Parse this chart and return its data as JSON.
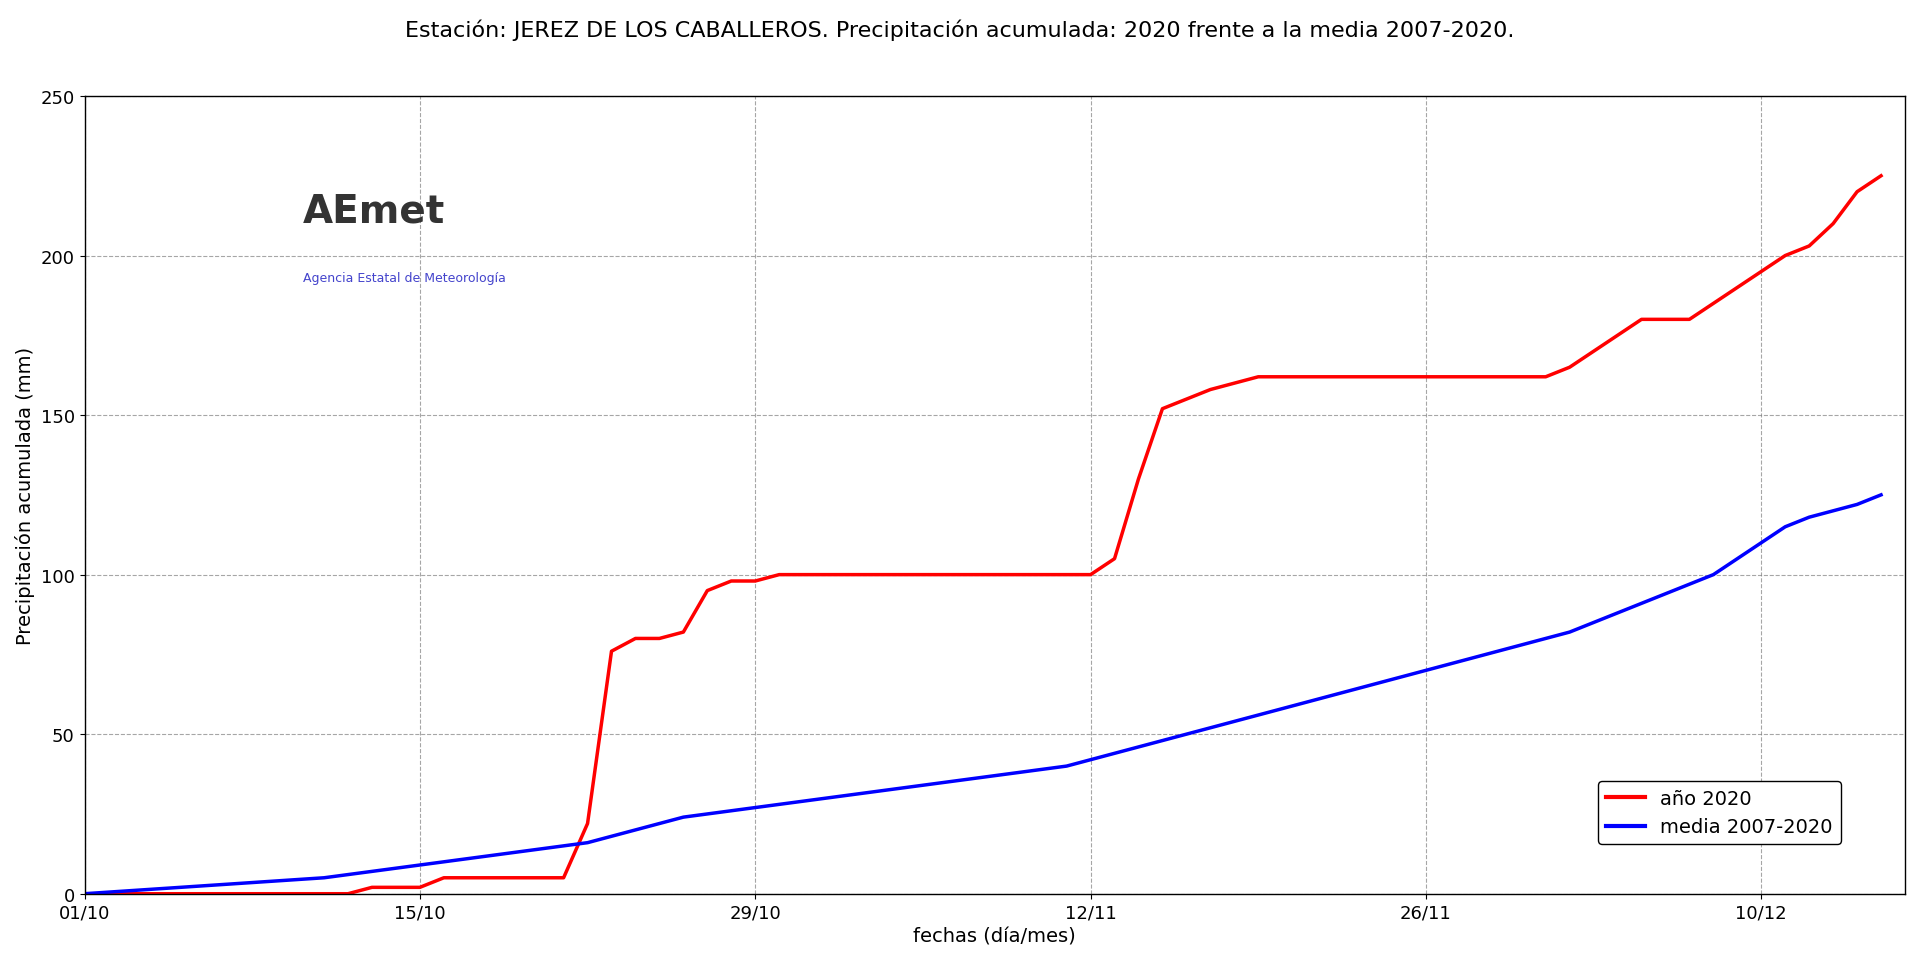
{
  "title": "Estación: JEREZ DE LOS CABALLEROS. Precipitación acumulada: 2020 frente a la media 2007-2020.",
  "xlabel": "fechas (día/mes)",
  "ylabel": "Precipitación acumulada (mm)",
  "xlim_start": "2020-10-01",
  "xlim_end": "2020-12-16",
  "ylim": [
    0,
    250
  ],
  "yticks": [
    0,
    50,
    100,
    150,
    200,
    250
  ],
  "xtick_labels": [
    "01/10",
    "15/10",
    "29/10",
    "12/11",
    "26/11",
    "10/12"
  ],
  "xtick_days": [
    0,
    14,
    28,
    42,
    56,
    70
  ],
  "line_color_2020": "#ff0000",
  "line_color_media": "#0000ff",
  "line_width": 2.5,
  "legend_label_2020": "año 2020",
  "legend_label_media": "media 2007-2020",
  "background_color": "#ffffff",
  "grid_color": "#808080",
  "grid_linestyle": "--",
  "title_fontsize": 16,
  "axis_fontsize": 14,
  "tick_fontsize": 13,
  "legend_fontsize": 14,
  "days_2020": [
    0,
    1,
    2,
    3,
    4,
    5,
    6,
    7,
    8,
    9,
    10,
    11,
    12,
    13,
    14,
    15,
    16,
    17,
    18,
    19,
    20,
    21,
    22,
    23,
    24,
    25,
    26,
    27,
    28,
    29,
    30,
    31,
    32,
    33,
    34,
    35,
    36,
    37,
    38,
    39,
    40,
    41,
    42,
    43,
    44,
    45,
    46,
    47,
    48,
    49,
    50,
    51,
    52,
    53,
    54,
    55,
    56,
    57,
    58,
    59,
    60,
    61,
    62,
    63,
    64,
    65,
    66,
    67,
    68,
    69,
    70,
    71,
    72,
    73,
    74,
    75
  ],
  "values_2020": [
    0,
    0,
    0,
    0,
    0,
    0,
    0,
    0,
    0,
    0,
    0,
    0,
    2,
    2,
    2,
    5,
    5,
    5,
    5,
    5,
    5,
    22,
    76,
    80,
    80,
    82,
    95,
    98,
    98,
    100,
    100,
    100,
    100,
    100,
    100,
    100,
    100,
    100,
    100,
    100,
    100,
    100,
    100,
    105,
    130,
    152,
    155,
    158,
    160,
    162,
    162,
    162,
    162,
    162,
    162,
    162,
    162,
    162,
    162,
    162,
    162,
    162,
    165,
    170,
    175,
    180,
    180,
    180,
    185,
    190,
    195,
    200,
    203,
    210,
    220,
    225
  ],
  "days_media": [
    0,
    1,
    2,
    3,
    4,
    5,
    6,
    7,
    8,
    9,
    10,
    11,
    12,
    13,
    14,
    15,
    16,
    17,
    18,
    19,
    20,
    21,
    22,
    23,
    24,
    25,
    26,
    27,
    28,
    29,
    30,
    31,
    32,
    33,
    34,
    35,
    36,
    37,
    38,
    39,
    40,
    41,
    42,
    43,
    44,
    45,
    46,
    47,
    48,
    49,
    50,
    51,
    52,
    53,
    54,
    55,
    56,
    57,
    58,
    59,
    60,
    61,
    62,
    63,
    64,
    65,
    66,
    67,
    68,
    69,
    70,
    71,
    72,
    73,
    74,
    75
  ],
  "values_media": [
    0,
    0.5,
    1,
    1.5,
    2,
    2.5,
    3,
    3.5,
    4,
    4.5,
    5,
    6,
    7,
    8,
    9,
    10,
    11,
    12,
    13,
    14,
    15,
    16,
    18,
    20,
    22,
    24,
    25,
    26,
    27,
    28,
    29,
    30,
    31,
    32,
    33,
    34,
    35,
    36,
    37,
    38,
    39,
    40,
    42,
    44,
    46,
    48,
    50,
    52,
    54,
    56,
    58,
    60,
    62,
    64,
    66,
    68,
    70,
    72,
    74,
    76,
    78,
    80,
    82,
    85,
    88,
    91,
    94,
    97,
    100,
    105,
    110,
    115,
    118,
    120,
    122,
    125
  ]
}
